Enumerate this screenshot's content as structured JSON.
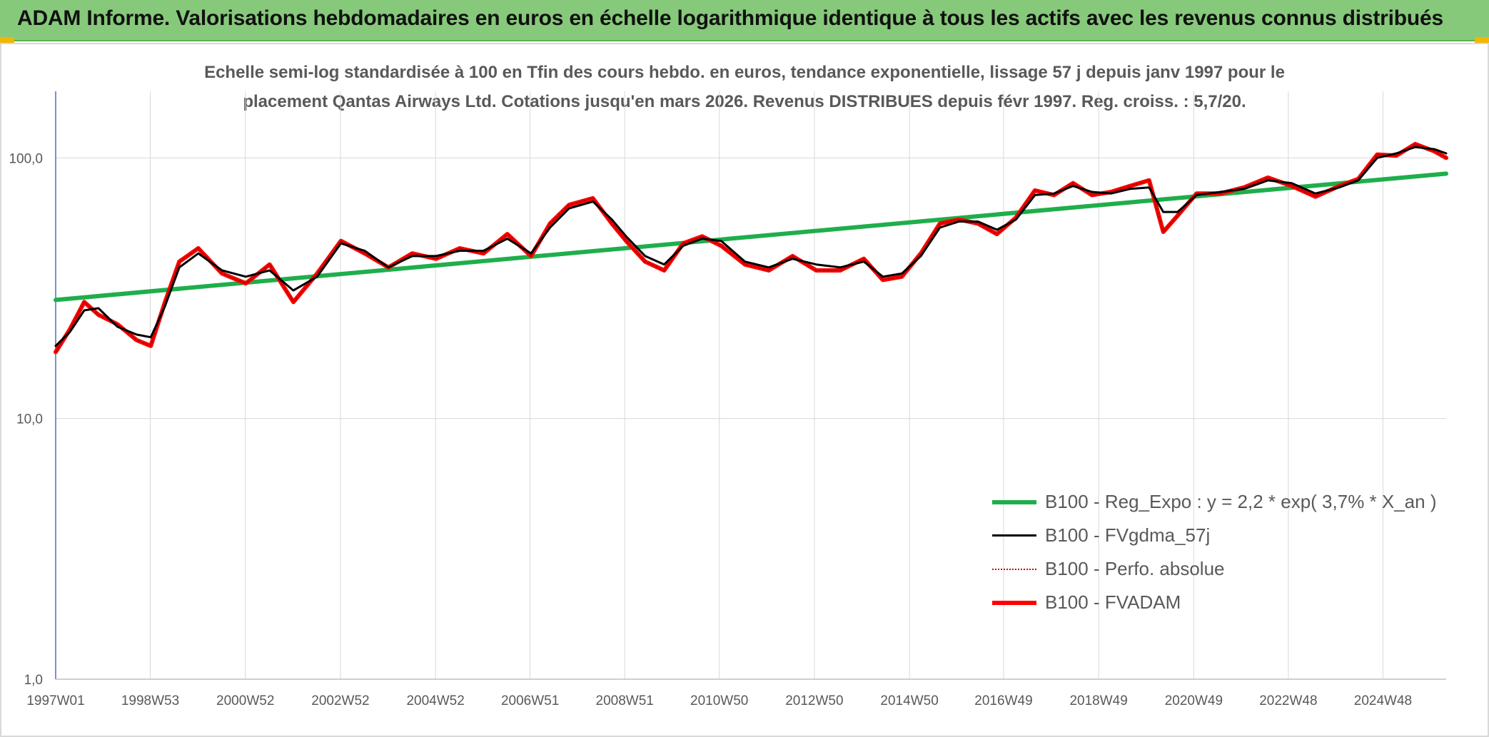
{
  "header": {
    "title": "ADAM Informe. Valorisations hebdomadaires en euros en échelle logarithmique identique à tous les actifs avec les revenus connus distribués"
  },
  "chart_data": {
    "type": "line",
    "title_line1": "Echelle semi-log standardisée à 100 en Tfin des cours hebdo. en euros, tendance exponentielle, lissage 57 j depuis janv 1997 pour le",
    "title_line2": "placement Qantas Airways Ltd. Cotations jusqu'en mars 2026. Revenus DISTRIBUES depuis févr 1997. Reg. croiss. : 5,7/20.",
    "y_scale": "log",
    "ylim": [
      1,
      180
    ],
    "y_ticks": [
      1,
      10,
      100
    ],
    "y_tick_labels": [
      "1,0",
      "10,0",
      "100,0"
    ],
    "xlim": [
      1997.0,
      2026.25
    ],
    "x_ticks": [
      1997.0,
      1998.99,
      2000.99,
      2002.99,
      2004.99,
      2006.98,
      2008.97,
      2010.96,
      2012.96,
      2014.96,
      2016.94,
      2018.94,
      2020.94,
      2022.93,
      2024.92
    ],
    "x_tick_labels": [
      "1997W01",
      "1998W53",
      "2000W52",
      "2002W52",
      "2004W52",
      "2006W51",
      "2008W51",
      "2010W50",
      "2012W50",
      "2014W50",
      "2016W49",
      "2018W49",
      "2020W49",
      "2022W48",
      "2024W48"
    ],
    "grid": "vertical and horizontal gridlines",
    "legend_position": "bottom-right",
    "series": [
      {
        "name": "B100 - Reg_Expo : y = 2,2 * exp( 3,7% *  X_an )",
        "color": "#1fae4b",
        "style": "thick",
        "x": [
          1997.0,
          2026.25
        ],
        "y": [
          28.5,
          87.0
        ]
      },
      {
        "name": "B100 - FVgdma_57j",
        "color": "#000000",
        "style": "thin",
        "x": [
          1997.0,
          1997.3,
          1997.6,
          1997.9,
          1998.3,
          1998.7,
          1999.0,
          1999.3,
          1999.6,
          2000.0,
          2000.5,
          2001.0,
          2001.5,
          2002.0,
          2002.5,
          2003.0,
          2003.5,
          2004.0,
          2004.5,
          2005.0,
          2005.5,
          2006.0,
          2006.5,
          2007.0,
          2007.4,
          2007.8,
          2008.3,
          2008.7,
          2009.0,
          2009.4,
          2009.8,
          2010.2,
          2010.6,
          2011.0,
          2011.5,
          2012.0,
          2012.5,
          2013.0,
          2013.5,
          2014.0,
          2014.4,
          2014.8,
          2015.2,
          2015.6,
          2016.0,
          2016.4,
          2016.8,
          2017.2,
          2017.6,
          2018.0,
          2018.4,
          2018.8,
          2019.2,
          2019.6,
          2020.0,
          2020.3,
          2020.6,
          2021.0,
          2021.5,
          2022.0,
          2022.5,
          2023.0,
          2023.5,
          2024.0,
          2024.4,
          2024.8,
          2025.2,
          2025.6,
          2026.0,
          2026.25
        ],
        "y": [
          19,
          21.5,
          26,
          26.5,
          22.5,
          21,
          20.5,
          27,
          38,
          43,
          37,
          35,
          37,
          31,
          35,
          47,
          44,
          38,
          42,
          42,
          44,
          44,
          49,
          43,
          54,
          64,
          68,
          58,
          50,
          42,
          39,
          46,
          49,
          48,
          40,
          38,
          41,
          39,
          38,
          40,
          35,
          36,
          42,
          54,
          57,
          57,
          53,
          58,
          72,
          73,
          78,
          74,
          73,
          76,
          77,
          62,
          62,
          72,
          74,
          76,
          82,
          80,
          73,
          77,
          82,
          100,
          104,
          110,
          108,
          104
        ]
      },
      {
        "name": "B100 - Perfo. absolue",
        "color": "#c00000",
        "style": "dotted",
        "x": [
          1997.0,
          1997.3,
          1997.6,
          1997.9,
          1998.3,
          1998.7,
          1999.0,
          1999.3,
          1999.6,
          2000.0,
          2000.5,
          2001.0,
          2001.5,
          2002.0,
          2002.5,
          2003.0,
          2003.5,
          2004.0,
          2004.5,
          2005.0,
          2005.5,
          2006.0,
          2006.5,
          2007.0,
          2007.4,
          2007.8,
          2008.3,
          2008.7,
          2009.0,
          2009.4,
          2009.8,
          2010.2,
          2010.6,
          2011.0,
          2011.5,
          2012.0,
          2012.5,
          2013.0,
          2013.5,
          2014.0,
          2014.4,
          2014.8,
          2015.2,
          2015.6,
          2016.0,
          2016.4,
          2016.8,
          2017.2,
          2017.6,
          2018.0,
          2018.4,
          2018.8,
          2019.2,
          2019.6,
          2020.0,
          2020.3,
          2020.6,
          2021.0,
          2021.5,
          2022.0,
          2022.5,
          2023.0,
          2023.5,
          2024.0,
          2024.4,
          2024.8,
          2025.2,
          2025.6,
          2026.0,
          2026.25
        ],
        "y": [
          18,
          22,
          28,
          25,
          23,
          20,
          19,
          28,
          40,
          45,
          36,
          33,
          39,
          28,
          36,
          48,
          43,
          38,
          43,
          41,
          45,
          43,
          51,
          42,
          56,
          66,
          70,
          56,
          48,
          40,
          37,
          47,
          50,
          46,
          39,
          37,
          42,
          37,
          37,
          41,
          34,
          35,
          43,
          56,
          58,
          56,
          51,
          59,
          75,
          72,
          80,
          72,
          74,
          78,
          82,
          52,
          60,
          73,
          73,
          77,
          84,
          78,
          71,
          78,
          83,
          103,
          102,
          113,
          106,
          100
        ]
      },
      {
        "name": "B100 - FVADAM",
        "color": "#ff0000",
        "style": "thick",
        "x": [
          1997.0,
          1997.3,
          1997.6,
          1997.9,
          1998.3,
          1998.7,
          1999.0,
          1999.3,
          1999.6,
          2000.0,
          2000.5,
          2001.0,
          2001.5,
          2002.0,
          2002.5,
          2003.0,
          2003.5,
          2004.0,
          2004.5,
          2005.0,
          2005.5,
          2006.0,
          2006.5,
          2007.0,
          2007.4,
          2007.8,
          2008.3,
          2008.7,
          2009.0,
          2009.4,
          2009.8,
          2010.2,
          2010.6,
          2011.0,
          2011.5,
          2012.0,
          2012.5,
          2013.0,
          2013.5,
          2014.0,
          2014.4,
          2014.8,
          2015.2,
          2015.6,
          2016.0,
          2016.4,
          2016.8,
          2017.2,
          2017.6,
          2018.0,
          2018.4,
          2018.8,
          2019.2,
          2019.6,
          2020.0,
          2020.3,
          2020.6,
          2021.0,
          2021.5,
          2022.0,
          2022.5,
          2023.0,
          2023.5,
          2024.0,
          2024.4,
          2024.8,
          2025.2,
          2025.6,
          2026.0,
          2026.25
        ],
        "y": [
          18,
          22,
          28,
          25,
          23,
          20,
          19,
          28,
          40,
          45,
          36,
          33,
          39,
          28,
          36,
          48,
          43,
          38,
          43,
          41,
          45,
          43,
          51,
          42,
          56,
          66,
          70,
          56,
          48,
          40,
          37,
          47,
          50,
          46,
          39,
          37,
          42,
          37,
          37,
          41,
          34,
          35,
          43,
          56,
          58,
          56,
          51,
          59,
          75,
          72,
          80,
          72,
          74,
          78,
          82,
          52,
          60,
          73,
          73,
          77,
          84,
          78,
          71,
          78,
          83,
          103,
          102,
          113,
          106,
          100
        ]
      }
    ]
  }
}
